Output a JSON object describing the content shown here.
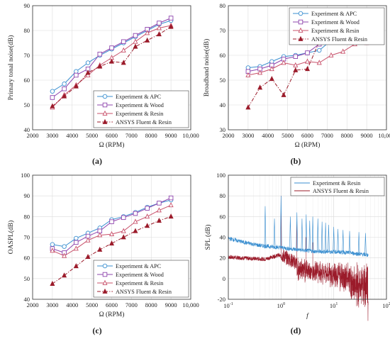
{
  "chart_data": [
    {
      "type": "line",
      "label": "(a)",
      "xlabel": "Ω (RPM)",
      "ylabel": "Primary tonal noise(dB)",
      "xlim": [
        2000,
        10000
      ],
      "ylim": [
        40,
        90
      ],
      "xticks": [
        2000,
        3000,
        4000,
        5000,
        6000,
        7000,
        8000,
        9000,
        10000
      ],
      "xtick_labels": [
        "2000",
        "3000",
        "4000",
        "5000",
        "6000",
        "7000",
        "8000",
        "9000",
        "10,000"
      ],
      "yticks": [
        40,
        50,
        60,
        70,
        80,
        90
      ],
      "grid": true,
      "legend_position": "bottom-right",
      "x": [
        3000,
        3600,
        4200,
        4800,
        5400,
        6000,
        6600,
        7200,
        7800,
        8400,
        9000
      ],
      "series": [
        {
          "name": "Experiment & APC",
          "color": "#3a8fd0",
          "marker": "circle",
          "dash": "solid",
          "values": [
            55.5,
            58.5,
            63.5,
            67,
            70,
            72.5,
            75,
            77.5,
            80,
            82.5,
            84
          ]
        },
        {
          "name": "Experiment & Wood",
          "color": "#8e44ad",
          "marker": "square",
          "dash": "solid",
          "values": [
            53,
            56.5,
            62,
            64.5,
            70.5,
            73,
            75.5,
            78,
            80.5,
            83,
            85
          ]
        },
        {
          "name": "Experiment & Resin",
          "color": "#c8506a",
          "marker": "triangle-open",
          "dash": "solid",
          "values": [
            49,
            54,
            58,
            62,
            66,
            69,
            72,
            75.5,
            79,
            81,
            82
          ]
        },
        {
          "name": "ANSYS Fluent & Resin",
          "color": "#9b1b2a",
          "marker": "triangle-filled",
          "dash": "dashdot",
          "values": [
            49.5,
            53.5,
            57.5,
            63,
            65.5,
            67.5,
            67,
            73.5,
            76,
            78.5,
            81.5
          ]
        }
      ]
    },
    {
      "type": "line",
      "label": "(b)",
      "xlabel": "Ω (RPM)",
      "ylabel": "Broadband noise(dB)",
      "xlim": [
        2000,
        10000
      ],
      "ylim": [
        30,
        80
      ],
      "xticks": [
        2000,
        3000,
        4000,
        5000,
        6000,
        7000,
        8000,
        9000,
        10000
      ],
      "xtick_labels": [
        "2000",
        "3000",
        "4000",
        "5000",
        "6000",
        "7000",
        "8000",
        "9000",
        "10,000"
      ],
      "yticks": [
        30,
        40,
        50,
        60,
        70,
        80
      ],
      "grid": true,
      "legend_position": "top-right",
      "x": [
        3000,
        3600,
        4200,
        4800,
        5400,
        6000,
        6600,
        7200,
        7800,
        8400,
        9000
      ],
      "series": [
        {
          "name": "Experiment & APC",
          "color": "#3a8fd0",
          "marker": "circle",
          "dash": "solid",
          "values": [
            55,
            55.5,
            57.5,
            59.5,
            60,
            61,
            62,
            66,
            66.5,
            68,
            68.5
          ]
        },
        {
          "name": "Experiment & Wood",
          "color": "#8e44ad",
          "marker": "square",
          "dash": "solid",
          "values": [
            53.5,
            54.5,
            56,
            58.5,
            59.5,
            61,
            64.5,
            66,
            67.5,
            69.5,
            70
          ]
        },
        {
          "name": "Experiment & Resin",
          "color": "#c8506a",
          "marker": "triangle-open",
          "dash": "solid",
          "values": [
            52,
            53,
            54.5,
            57,
            56,
            57.5,
            57,
            60,
            61.5,
            64.5,
            65
          ]
        },
        {
          "name": "ANSYS Fluent & Resin",
          "color": "#9b1b2a",
          "marker": "triangle-filled",
          "dash": "dashdot",
          "values": [
            39,
            47,
            50.5,
            44,
            54,
            54.5,
            65.5,
            65.5,
            69,
            71.5,
            74
          ]
        }
      ]
    },
    {
      "type": "line",
      "label": "(c)",
      "xlabel": "Ω (RPM)",
      "ylabel": "OASPL(dB)",
      "xlim": [
        2000,
        10000
      ],
      "ylim": [
        40,
        100
      ],
      "xticks": [
        2000,
        3000,
        4000,
        5000,
        6000,
        7000,
        8000,
        9000,
        10000
      ],
      "xtick_labels": [
        "2000",
        "3000",
        "4000",
        "5000",
        "6000",
        "7000",
        "8000",
        "9000",
        "10,000"
      ],
      "yticks": [
        40,
        50,
        60,
        70,
        80,
        90,
        100
      ],
      "grid": true,
      "legend_position": "bottom-right",
      "x": [
        3000,
        3600,
        4200,
        4800,
        5400,
        6000,
        6600,
        7200,
        7800,
        8400,
        9000
      ],
      "series": [
        {
          "name": "Experiment & APC",
          "color": "#3a8fd0",
          "marker": "circle",
          "dash": "solid",
          "values": [
            66.5,
            65.5,
            69.5,
            72,
            74.5,
            78.5,
            80,
            82,
            84.5,
            86.5,
            88
          ]
        },
        {
          "name": "Experiment & Wood",
          "color": "#8e44ad",
          "marker": "square",
          "dash": "solid",
          "values": [
            64.5,
            62.5,
            67.5,
            70.5,
            73,
            77.5,
            79.5,
            81.5,
            84,
            86.5,
            89
          ]
        },
        {
          "name": "Experiment & Resin",
          "color": "#c8506a",
          "marker": "triangle-open",
          "dash": "solid",
          "values": [
            63.5,
            61,
            64.5,
            68.5,
            71,
            71.5,
            73,
            77.5,
            80,
            83,
            85.5
          ]
        },
        {
          "name": "ANSYS Fluent & Resin",
          "color": "#9b1b2a",
          "marker": "triangle-filled",
          "dash": "dashdot",
          "values": [
            47.5,
            51.5,
            56,
            60.5,
            64,
            67,
            70,
            73,
            75.5,
            78,
            80
          ]
        }
      ]
    },
    {
      "type": "line",
      "label": "(d)",
      "xlabel": "f",
      "ylabel": "SPL (dB)",
      "xscale": "log",
      "xlim": [
        0.1,
        100
      ],
      "ylim": [
        -20,
        100
      ],
      "xticks": [
        0.1,
        1,
        10,
        100
      ],
      "xtick_labels": [
        "10-1",
        "100",
        "101",
        "102"
      ],
      "yticks": [
        -20,
        0,
        20,
        40,
        60,
        80,
        100
      ],
      "grid": true,
      "legend_position": "top-right",
      "series": [
        {
          "name": "Experiment & Resin",
          "color": "#3b8fd0",
          "marker": "none",
          "dash": "solid",
          "base": [
            [
              0.1,
              39
            ],
            [
              0.2,
              35
            ],
            [
              0.4,
              32
            ],
            [
              0.6,
              31
            ],
            [
              1,
              30
            ],
            [
              2,
              28
            ],
            [
              5,
              26
            ],
            [
              10,
              26
            ],
            [
              20,
              25
            ],
            [
              40,
              23
            ],
            [
              45,
              23
            ]
          ],
          "peaks": [
            [
              0.5,
              70
            ],
            [
              0.75,
              58
            ],
            [
              1,
              80
            ],
            [
              1.5,
              60
            ],
            [
              2,
              64
            ],
            [
              2.5,
              58
            ],
            [
              3,
              62
            ],
            [
              3.5,
              56
            ],
            [
              4,
              60
            ],
            [
              5,
              58
            ],
            [
              6,
              55
            ],
            [
              7,
              54
            ],
            [
              8,
              52
            ],
            [
              10,
              50
            ],
            [
              12,
              48
            ],
            [
              15,
              47
            ],
            [
              20,
              46
            ],
            [
              30,
              45
            ],
            [
              40,
              44
            ]
          ]
        },
        {
          "name": "ANSYS Fluent & Resin",
          "color": "#9b1b2a",
          "marker": "none",
          "dash": "solid",
          "base": [
            [
              0.1,
              20
            ],
            [
              0.2,
              19
            ],
            [
              0.5,
              18
            ],
            [
              0.9,
              22
            ],
            [
              1.2,
              18
            ],
            [
              2,
              12
            ],
            [
              5,
              10
            ],
            [
              10,
              8
            ],
            [
              20,
              4
            ],
            [
              40,
              -4
            ],
            [
              45,
              -5
            ]
          ],
          "peaks": [
            [
              1,
              80
            ],
            [
              2,
              55
            ],
            [
              3,
              40
            ],
            [
              4,
              35
            ]
          ]
        }
      ]
    }
  ]
}
